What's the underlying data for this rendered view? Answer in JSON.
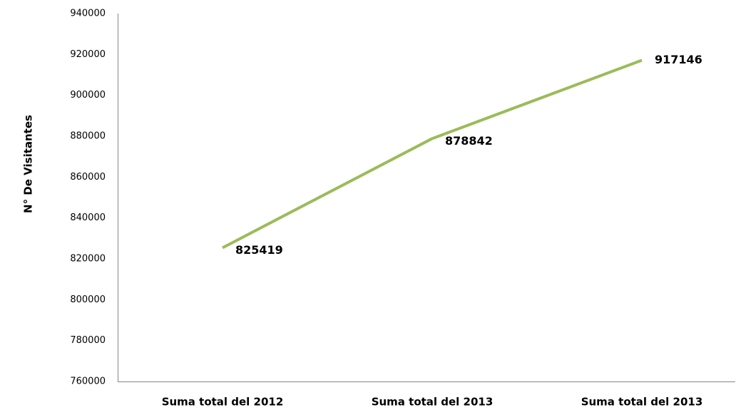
{
  "chart_data": {
    "type": "line",
    "y_label": "N° De Visitantes",
    "categories": [
      "Suma total del 2012",
      "Suma total del 2013",
      "Suma total del 2013"
    ],
    "values": [
      825419,
      878842,
      917146
    ],
    "color": "#9bbb59",
    "ylim": [
      760000,
      940000
    ],
    "yticks": [
      760000,
      780000,
      800000,
      820000,
      840000,
      860000,
      880000,
      900000,
      920000,
      940000
    ],
    "grid": false,
    "data_labels": true
  }
}
